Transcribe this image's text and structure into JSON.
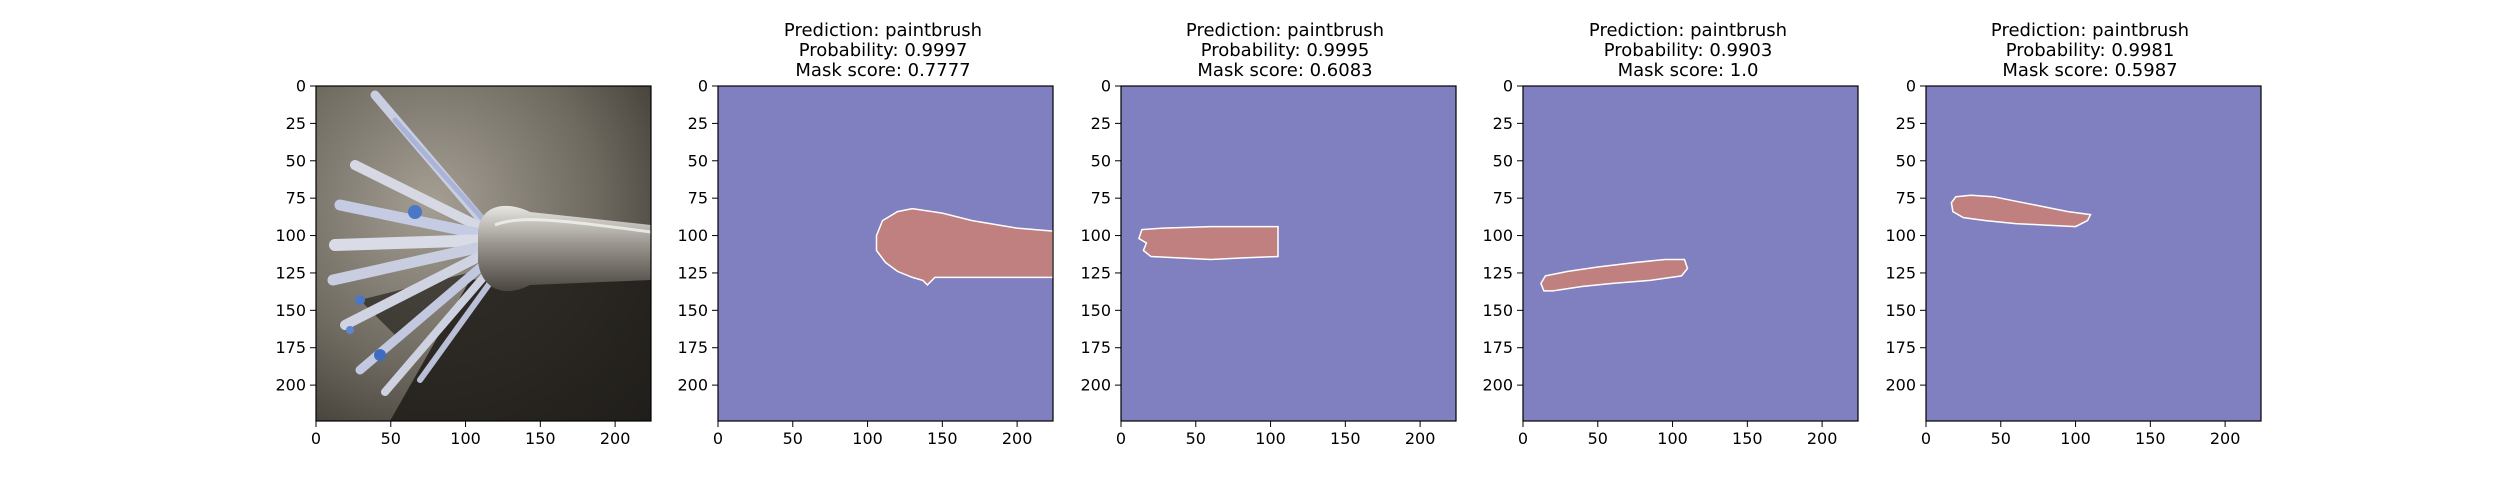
{
  "figure": {
    "panel_count": 5
  },
  "chart_data": [
    {
      "type": "image",
      "content": "photo",
      "photo_subject": "paintbrush",
      "xticks": [
        0,
        50,
        100,
        150,
        200
      ],
      "yticks": [
        0,
        25,
        50,
        75,
        100,
        125,
        150,
        175,
        200
      ],
      "xlim": [
        0,
        224
      ],
      "ylim": [
        224,
        0
      ]
    },
    {
      "type": "heatmap",
      "content": "mask",
      "title_lines": [
        "Prediction: paintbrush",
        "Probability: 0.9997",
        "Mask score: 0.7777"
      ],
      "prediction": "paintbrush",
      "probability": 0.9997,
      "mask_score": 0.7777,
      "colors": {
        "background": "#8080c0",
        "mask": "#c08080",
        "edge": "#ffffff"
      },
      "mask_outline": [
        [
          224,
          97
        ],
        [
          200,
          95
        ],
        [
          170,
          90
        ],
        [
          150,
          85
        ],
        [
          130,
          82
        ],
        [
          120,
          84
        ],
        [
          110,
          90
        ],
        [
          106,
          100
        ],
        [
          106,
          110
        ],
        [
          112,
          118
        ],
        [
          120,
          124
        ],
        [
          130,
          128
        ],
        [
          137,
          130
        ],
        [
          140,
          133
        ],
        [
          145,
          128
        ],
        [
          160,
          128
        ],
        [
          190,
          128
        ],
        [
          224,
          128
        ]
      ],
      "xticks": [
        0,
        50,
        100,
        150,
        200
      ],
      "yticks": [
        0,
        25,
        50,
        75,
        100,
        125,
        150,
        175,
        200
      ],
      "xlim": [
        0,
        224
      ],
      "ylim": [
        224,
        0
      ]
    },
    {
      "type": "heatmap",
      "content": "mask",
      "title_lines": [
        "Prediction: paintbrush",
        "Probability: 0.9995",
        "Mask score: 0.6083"
      ],
      "prediction": "paintbrush",
      "probability": 0.9995,
      "mask_score": 0.6083,
      "colors": {
        "background": "#8080c0",
        "mask": "#c08080",
        "edge": "#ffffff"
      },
      "mask_outline": [
        [
          28,
          95
        ],
        [
          60,
          94
        ],
        [
          105,
          94
        ],
        [
          105,
          100
        ],
        [
          105,
          114
        ],
        [
          80,
          115
        ],
        [
          60,
          116
        ],
        [
          40,
          115
        ],
        [
          20,
          114
        ],
        [
          15,
          110
        ],
        [
          17,
          105
        ],
        [
          12,
          102
        ],
        [
          14,
          96
        ]
      ],
      "xticks": [
        0,
        50,
        100,
        150,
        200
      ],
      "yticks": [
        0,
        25,
        50,
        75,
        100,
        125,
        150,
        175,
        200
      ],
      "xlim": [
        0,
        224
      ],
      "ylim": [
        224,
        0
      ]
    },
    {
      "type": "heatmap",
      "content": "mask",
      "title_lines": [
        "Prediction: paintbrush",
        "Probability: 0.9903",
        "Mask score: 1.0"
      ],
      "prediction": "paintbrush",
      "probability": 0.9903,
      "mask_score": 1.0,
      "colors": {
        "background": "#8080c0",
        "mask": "#c08080",
        "edge": "#ffffff"
      },
      "mask_outline": [
        [
          15,
          127
        ],
        [
          30,
          124
        ],
        [
          50,
          121
        ],
        [
          75,
          118
        ],
        [
          95,
          116
        ],
        [
          108,
          116
        ],
        [
          110,
          122
        ],
        [
          106,
          127
        ],
        [
          85,
          130
        ],
        [
          60,
          132
        ],
        [
          40,
          134
        ],
        [
          20,
          137
        ],
        [
          14,
          137
        ],
        [
          12,
          132
        ]
      ],
      "xticks": [
        0,
        50,
        100,
        150,
        200
      ],
      "yticks": [
        0,
        25,
        50,
        75,
        100,
        125,
        150,
        175,
        200
      ],
      "xlim": [
        0,
        224
      ],
      "ylim": [
        224,
        0
      ]
    },
    {
      "type": "heatmap",
      "content": "mask",
      "title_lines": [
        "Prediction: paintbrush",
        "Probability: 0.9981",
        "Mask score: 0.5987"
      ],
      "prediction": "paintbrush",
      "probability": 0.9981,
      "mask_score": 0.5987,
      "colors": {
        "background": "#8080c0",
        "mask": "#c08080",
        "edge": "#ffffff"
      },
      "mask_outline": [
        [
          20,
          74
        ],
        [
          30,
          73
        ],
        [
          45,
          74
        ],
        [
          60,
          77
        ],
        [
          80,
          81
        ],
        [
          95,
          84
        ],
        [
          110,
          86
        ],
        [
          108,
          90
        ],
        [
          100,
          94
        ],
        [
          80,
          93
        ],
        [
          60,
          92
        ],
        [
          40,
          90
        ],
        [
          25,
          88
        ],
        [
          18,
          84
        ],
        [
          17,
          78
        ]
      ],
      "xticks": [
        0,
        50,
        100,
        150,
        200
      ],
      "yticks": [
        0,
        25,
        50,
        75,
        100,
        125,
        150,
        175,
        200
      ],
      "xlim": [
        0,
        224
      ],
      "ylim": [
        224,
        0
      ]
    }
  ]
}
